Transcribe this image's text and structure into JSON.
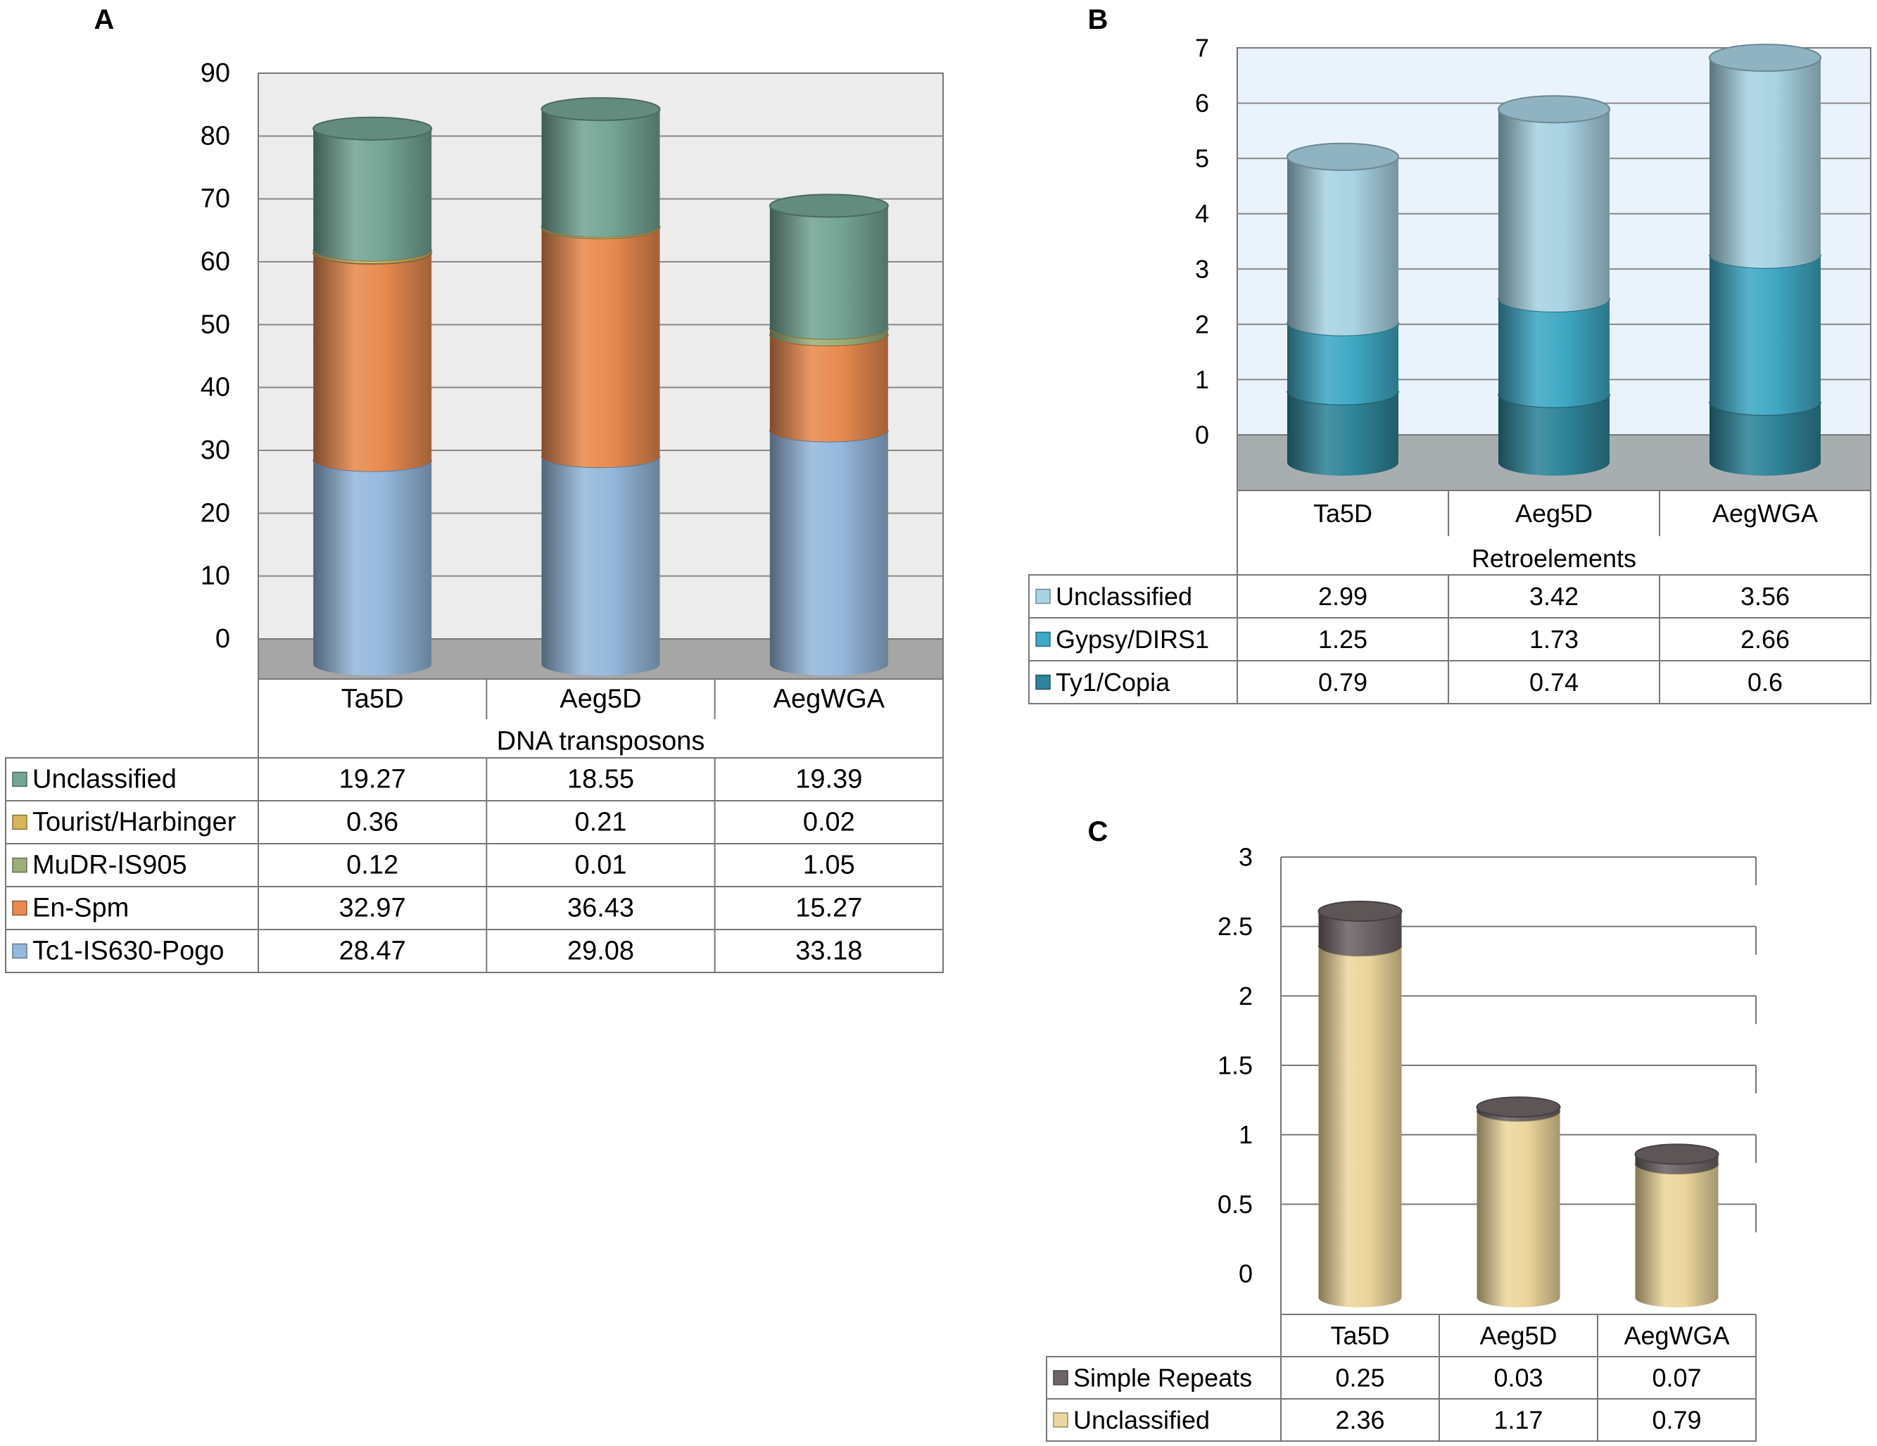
{
  "chart_data": [
    {
      "id": "A",
      "panel_label": "A",
      "type": "bar",
      "stacked": true,
      "style": "3d-cylinder",
      "xlabel": "DNA transposons",
      "ylabel": "",
      "ylim": [
        0,
        90
      ],
      "yticks": [
        "0",
        "10",
        "20",
        "30",
        "40",
        "50",
        "60",
        "70",
        "80",
        "90"
      ],
      "categories": [
        "Ta5D",
        "Aeg5D",
        "AegWGA"
      ],
      "series": [
        {
          "name": "Tc1-IS630-Pogo",
          "color": "#95b8dc",
          "values": [
            28.47,
            29.08,
            33.18
          ],
          "labels": [
            "28.47",
            "29.08",
            "33.18"
          ]
        },
        {
          "name": "En-Spm",
          "color": "#e88a4f",
          "values": [
            32.97,
            36.43,
            15.27
          ],
          "labels": [
            "32.97",
            "36.43",
            "15.27"
          ]
        },
        {
          "name": "MuDR-IS905",
          "color": "#9caf7a",
          "values": [
            0.12,
            0.01,
            1.05
          ],
          "labels": [
            "0.12",
            "0.01",
            "1.05"
          ]
        },
        {
          "name": "Tourist/Harbinger",
          "color": "#d8b45a",
          "values": [
            0.36,
            0.21,
            0.02
          ],
          "labels": [
            "0.36",
            "0.21",
            "0.02"
          ]
        },
        {
          "name": "Unclassified",
          "color": "#74a594",
          "values": [
            19.27,
            18.55,
            19.39
          ],
          "labels": [
            "19.27",
            "18.55",
            "19.39"
          ]
        }
      ]
    },
    {
      "id": "B",
      "panel_label": "B",
      "type": "bar",
      "stacked": true,
      "style": "3d-cylinder",
      "xlabel": "Retroelements",
      "ylabel": "",
      "ylim": [
        0,
        7
      ],
      "yticks": [
        "0",
        "1",
        "2",
        "3",
        "4",
        "5",
        "6",
        "7"
      ],
      "categories": [
        "Ta5D",
        "Aeg5D",
        "AegWGA"
      ],
      "series": [
        {
          "name": "Ty1/Copia",
          "color": "#2f8499",
          "values": [
            0.79,
            0.74,
            0.6
          ],
          "labels": [
            "0.79",
            "0.74",
            "0.6"
          ]
        },
        {
          "name": "Gypsy/DIRS1",
          "color": "#3fa8c4",
          "values": [
            1.25,
            1.73,
            2.66
          ],
          "labels": [
            "1.25",
            "1.73",
            "2.66"
          ]
        },
        {
          "name": "Unclassified",
          "color": "#a8d3e3",
          "values": [
            2.99,
            3.42,
            3.56
          ],
          "labels": [
            "2.99",
            "3.42",
            "3.56"
          ]
        }
      ]
    },
    {
      "id": "C",
      "panel_label": "C",
      "type": "bar",
      "stacked": true,
      "style": "3d-cylinder",
      "xlabel": "",
      "ylabel": "",
      "ylim": [
        0,
        3
      ],
      "yticks": [
        "0",
        "0.5",
        "1",
        "1.5",
        "2",
        "2.5",
        "3"
      ],
      "categories": [
        "Ta5D",
        "Aeg5D",
        "AegWGA"
      ],
      "series": [
        {
          "name": "Unclassified",
          "color": "#ecd69d",
          "values": [
            2.36,
            1.17,
            0.79
          ],
          "labels": [
            "2.36",
            "1.17",
            "0.79"
          ]
        },
        {
          "name": "Simple Repeats",
          "color": "#6e6466",
          "values": [
            0.25,
            0.03,
            0.07
          ],
          "labels": [
            "0.25",
            "0.03",
            "0.07"
          ]
        }
      ]
    }
  ]
}
